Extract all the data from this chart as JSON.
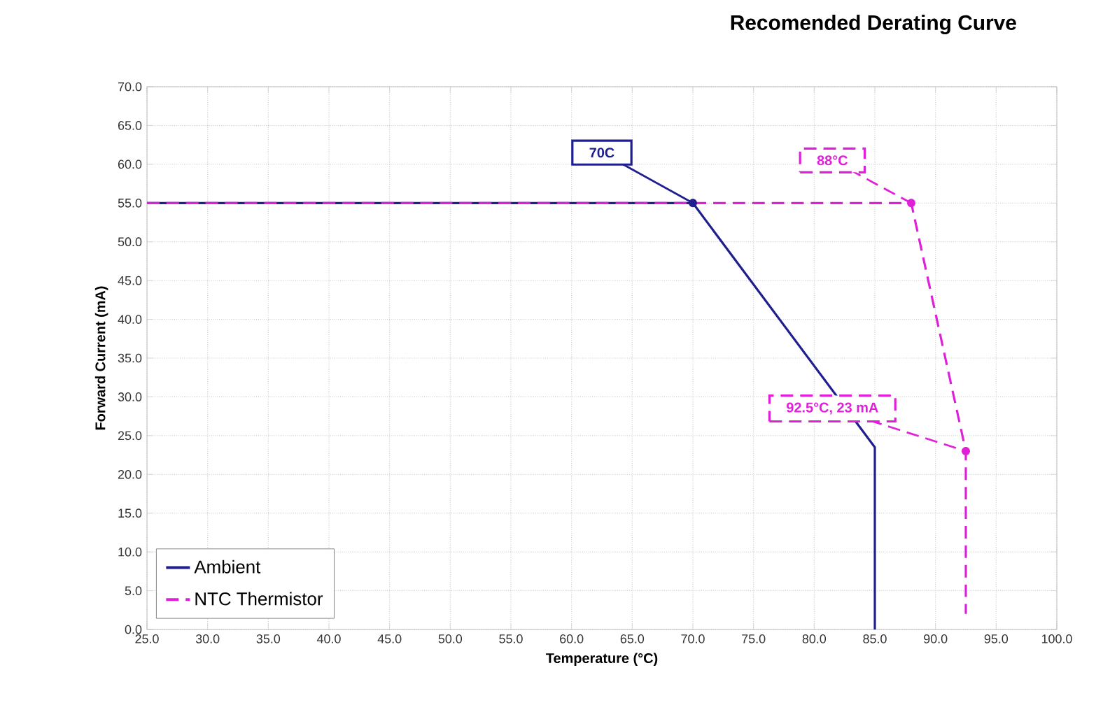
{
  "chart_data": {
    "type": "line",
    "title": "Recomended Derating Curve",
    "xlabel": "Temperature (°C)",
    "ylabel": "Forward Current (mA)",
    "series": [
      {
        "name": "Ambient",
        "color": "#1f1f8f",
        "line_style": "solid",
        "x": [
          25,
          70,
          85,
          85
        ],
        "values": [
          55,
          55,
          23.5,
          0
        ]
      },
      {
        "name": "NTC Thermistor",
        "color": "#e020d8",
        "line_style": "dashed",
        "x": [
          25,
          88,
          92.5,
          92.5
        ],
        "values": [
          55,
          55,
          23,
          2
        ]
      }
    ],
    "annotations": [
      {
        "text": "70C",
        "x": 70,
        "y": 55
      },
      {
        "text": "88°C",
        "x": 88,
        "y": 55
      },
      {
        "text": "92.5°C, 23 mA",
        "x": 92.5,
        "y": 23
      }
    ],
    "xlim": [
      25,
      100
    ],
    "ylim": [
      0,
      70
    ],
    "xticks": [
      {
        "value": 25,
        "label": "25.0"
      },
      {
        "value": 30,
        "label": "30.0"
      },
      {
        "value": 35,
        "label": "35.0"
      },
      {
        "value": 40,
        "label": "40.0"
      },
      {
        "value": 45,
        "label": "45.0"
      },
      {
        "value": 50,
        "label": "50.0"
      },
      {
        "value": 55,
        "label": "55.0"
      },
      {
        "value": 60,
        "label": "60.0"
      },
      {
        "value": 65,
        "label": "65.0"
      },
      {
        "value": 70,
        "label": "70.0"
      },
      {
        "value": 75,
        "label": "75.0"
      },
      {
        "value": 80,
        "label": "80.0"
      },
      {
        "value": 85,
        "label": "85.0"
      },
      {
        "value": 90,
        "label": "90.0"
      },
      {
        "value": 95,
        "label": "95.0"
      },
      {
        "value": 100,
        "label": "100.0"
      }
    ],
    "yticks": [
      {
        "value": 0,
        "label": "0.0"
      },
      {
        "value": 5,
        "label": "5.0"
      },
      {
        "value": 10,
        "label": "10.0"
      },
      {
        "value": 15,
        "label": "15.0"
      },
      {
        "value": 20,
        "label": "20.0"
      },
      {
        "value": 25,
        "label": "25.0"
      },
      {
        "value": 30,
        "label": "30.0"
      },
      {
        "value": 35,
        "label": "35.0"
      },
      {
        "value": 40,
        "label": "40.0"
      },
      {
        "value": 45,
        "label": "45.0"
      },
      {
        "value": 50,
        "label": "50.0"
      },
      {
        "value": 55,
        "label": "55.0"
      },
      {
        "value": 60,
        "label": "60.0"
      },
      {
        "value": 65,
        "label": "65.0"
      },
      {
        "value": 70,
        "label": "70.0"
      }
    ],
    "grid": true,
    "legend": "bottom left"
  }
}
